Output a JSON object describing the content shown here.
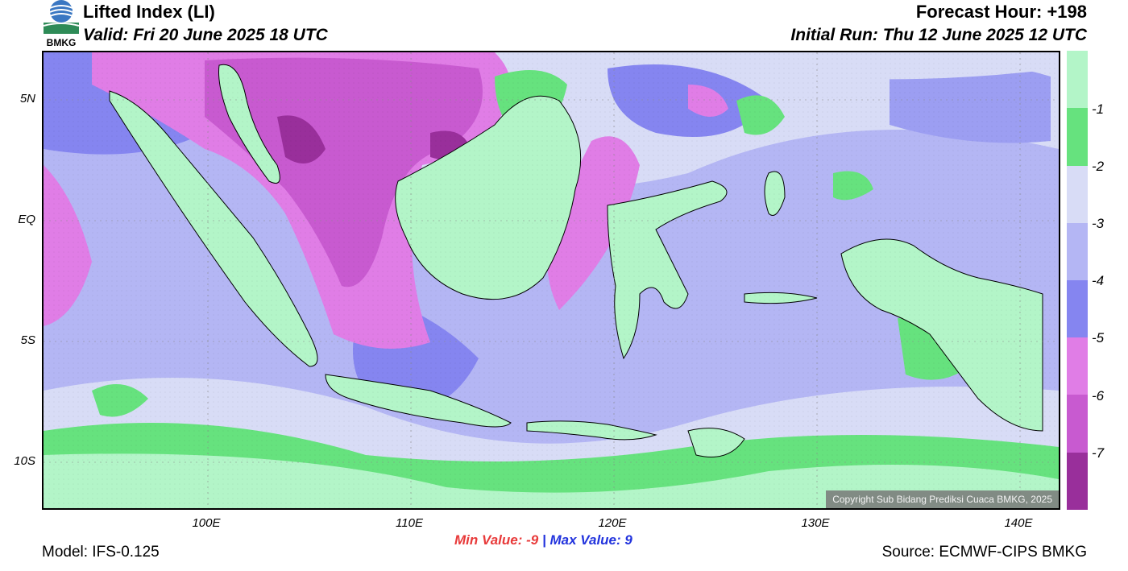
{
  "header": {
    "title": "Lifted Index (LI)",
    "valid": "Valid: Fri 20 June 2025 18 UTC",
    "forecast_hour": "Forecast Hour: +198",
    "initial_run": "Initial Run: Thu 12 June 2025 12 UTC"
  },
  "logo": {
    "text": "BMKG"
  },
  "map": {
    "copyright": "Copyright Sub Bidang Prediksi Cuaca BMKG, 2025",
    "lat_labels": [
      "5N",
      "EQ",
      "5S",
      "10S"
    ],
    "lon_labels": [
      "100E",
      "110E",
      "120E",
      "130E",
      "140E"
    ]
  },
  "colorbar": {
    "labels": [
      "-1",
      "-2",
      "-3",
      "-4",
      "-5",
      "-6",
      "-7"
    ],
    "colors": [
      "#b3f5c8",
      "#66e27e",
      "#d8dcf6",
      "#b4b6f4",
      "#8585f0",
      "#e07de6",
      "#c85ad0",
      "#992f9b"
    ]
  },
  "stats": {
    "min_label": "Min Value:",
    "min_value": "-9",
    "separator": "|",
    "max_label": "Max Value:",
    "max_value": "9"
  },
  "footer": {
    "model": "Model: IFS-0.125",
    "source": "Source: ECMWF-CIPS BMKG"
  }
}
